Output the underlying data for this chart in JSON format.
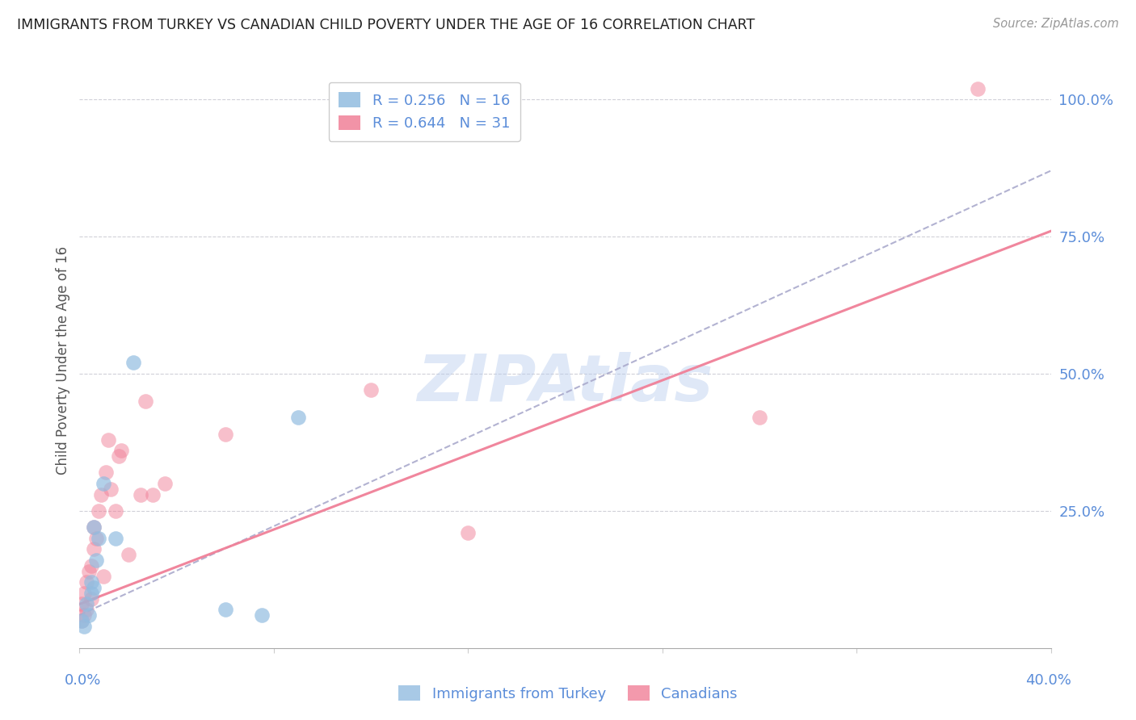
{
  "title": "IMMIGRANTS FROM TURKEY VS CANADIAN CHILD POVERTY UNDER THE AGE OF 16 CORRELATION CHART",
  "source": "Source: ZipAtlas.com",
  "ylabel": "Child Poverty Under the Age of 16",
  "color_blue": "#92bce0",
  "color_pink": "#f08098",
  "color_trendline_blue": "#aaaacc",
  "color_trendline_pink": "#f08098",
  "color_axis_labels": "#5b8dd9",
  "color_grid": "#d0d0d8",
  "xmin": 0.0,
  "xmax": 0.4,
  "ymin": 0.0,
  "ymax": 1.05,
  "ytick_values": [
    0.25,
    0.5,
    0.75,
    1.0
  ],
  "ytick_labels": [
    "25.0%",
    "50.0%",
    "75.0%",
    "100.0%"
  ],
  "xtick_values": [
    0.0,
    0.08,
    0.16,
    0.24,
    0.32,
    0.4
  ],
  "watermark": "ZIPAtlas",
  "r_blue": 0.256,
  "n_blue": 16,
  "r_pink": 0.644,
  "n_pink": 31,
  "blue_line_x0": 0.0,
  "blue_line_y0": 0.06,
  "blue_line_x1": 0.4,
  "blue_line_y1": 0.87,
  "pink_line_x0": 0.0,
  "pink_line_y0": 0.08,
  "pink_line_x1": 0.4,
  "pink_line_y1": 0.76,
  "blue_x": [
    0.001,
    0.002,
    0.003,
    0.004,
    0.005,
    0.005,
    0.006,
    0.006,
    0.007,
    0.008,
    0.01,
    0.015,
    0.022,
    0.06,
    0.075,
    0.09
  ],
  "blue_y": [
    0.05,
    0.04,
    0.08,
    0.06,
    0.12,
    0.1,
    0.22,
    0.11,
    0.16,
    0.2,
    0.3,
    0.2,
    0.52,
    0.07,
    0.06,
    0.42
  ],
  "pink_x": [
    0.001,
    0.001,
    0.002,
    0.002,
    0.003,
    0.003,
    0.004,
    0.005,
    0.005,
    0.006,
    0.006,
    0.007,
    0.008,
    0.009,
    0.01,
    0.011,
    0.012,
    0.013,
    0.015,
    0.016,
    0.017,
    0.02,
    0.025,
    0.027,
    0.03,
    0.035,
    0.06,
    0.12,
    0.16,
    0.28,
    0.37
  ],
  "pink_y": [
    0.05,
    0.08,
    0.06,
    0.1,
    0.07,
    0.12,
    0.14,
    0.09,
    0.15,
    0.18,
    0.22,
    0.2,
    0.25,
    0.28,
    0.13,
    0.32,
    0.38,
    0.29,
    0.25,
    0.35,
    0.36,
    0.17,
    0.28,
    0.45,
    0.28,
    0.3,
    0.39,
    0.47,
    0.21,
    0.42,
    1.02
  ]
}
